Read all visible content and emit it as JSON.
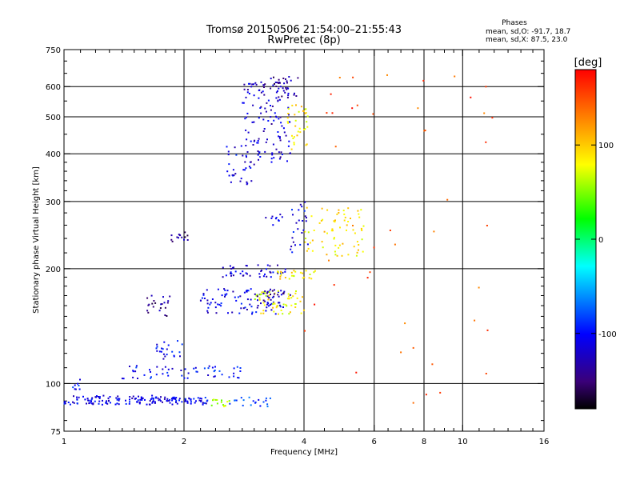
{
  "chart_data": {
    "type": "scatter",
    "title": "Tromsø 20150506 21:54:00–21:55:43",
    "subtitle": "RwPretec (8p)",
    "xlabel": "Frequency [MHz]",
    "ylabel": "Stationary phase Virtual Height [km]",
    "x_scale": "log",
    "y_scale": "log",
    "xlim": [
      1,
      16
    ],
    "ylim": [
      75,
      750
    ],
    "x_ticks": [
      1,
      2,
      4,
      6,
      8,
      10,
      16
    ],
    "x_tick_labels": [
      "1",
      "2",
      "4",
      "6",
      "8",
      "10",
      "16"
    ],
    "x_minor_ticks": [
      1.1,
      1.2,
      1.3,
      1.4,
      1.5,
      1.6,
      1.7,
      1.8,
      1.9,
      2.2,
      2.4,
      2.6,
      2.8,
      3,
      3.2,
      3.4,
      3.6,
      3.8,
      4.5,
      5,
      5.5,
      6.5,
      7,
      7.5,
      8.5,
      9,
      9.5,
      11,
      12,
      13,
      14,
      15
    ],
    "y_ticks": [
      75,
      100,
      200,
      300,
      400,
      500,
      600,
      750
    ],
    "y_tick_labels": [
      "75",
      "100",
      "200",
      "300",
      "400",
      "500",
      "600",
      "750"
    ],
    "y_minor_ticks": [
      80,
      90,
      110,
      120,
      130,
      140,
      150,
      160,
      170,
      180,
      190,
      220,
      240,
      260,
      280,
      320,
      340,
      360,
      380,
      450,
      550,
      650,
      700
    ],
    "x_grid": [
      2,
      4,
      6,
      8,
      10
    ],
    "y_grid": [
      100,
      200,
      300,
      400,
      500,
      600
    ],
    "stats_title": "Phases",
    "stats_lines": [
      "mean, sd,O: -91.7, 18.7",
      "mean, sd,X:  87.5, 23.0"
    ],
    "colorbar": {
      "label": "[deg]",
      "range": [
        -180,
        180
      ],
      "ticks": [
        100,
        0,
        -100
      ],
      "tick_labels": [
        "100",
        "0",
        "-100"
      ]
    },
    "clusters": [
      {
        "f": [
          1.0,
          1.9
        ],
        "h": [
          88,
          93
        ],
        "phase": -110,
        "n": 130
      },
      {
        "f": [
          1.05,
          1.1
        ],
        "h": [
          96,
          104
        ],
        "phase": -100,
        "n": 8
      },
      {
        "f": [
          1.9,
          2.3
        ],
        "h": [
          88,
          92
        ],
        "phase": -105,
        "n": 40
      },
      {
        "f": [
          2.3,
          2.6
        ],
        "h": [
          87,
          91
        ],
        "phase": 60,
        "n": 14
      },
      {
        "f": [
          2.6,
          3.3
        ],
        "h": [
          87,
          92
        ],
        "phase": -90,
        "n": 20
      },
      {
        "f": [
          1.4,
          2.9
        ],
        "h": [
          103,
          112
        ],
        "phase": -100,
        "n": 55
      },
      {
        "f": [
          1.7,
          2.0
        ],
        "h": [
          115,
          130
        ],
        "phase": -105,
        "n": 22
      },
      {
        "f": [
          1.6,
          1.85
        ],
        "h": [
          150,
          170
        ],
        "phase": -140,
        "n": 22
      },
      {
        "f": [
          1.85,
          2.05
        ],
        "h": [
          235,
          250
        ],
        "phase": -140,
        "n": 14
      },
      {
        "f": [
          2.2,
          3.6
        ],
        "h": [
          152,
          178
        ],
        "phase": -110,
        "n": 90
      },
      {
        "f": [
          3.0,
          4.0
        ],
        "h": [
          152,
          175
        ],
        "phase": 80,
        "n": 55
      },
      {
        "f": [
          3.0,
          3.7
        ],
        "h": [
          165,
          175
        ],
        "phase": -145,
        "n": 20
      },
      {
        "f": [
          2.5,
          3.6
        ],
        "h": [
          190,
          205
        ],
        "phase": -115,
        "n": 45
      },
      {
        "f": [
          3.4,
          4.3
        ],
        "h": [
          188,
          198
        ],
        "phase": 90,
        "n": 25
      },
      {
        "f": [
          4.0,
          5.7
        ],
        "h": [
          215,
          290
        ],
        "phase": 90,
        "n": 70
      },
      {
        "f": [
          3.7,
          4.1
        ],
        "h": [
          215,
          300
        ],
        "phase": -110,
        "n": 25
      },
      {
        "f": [
          3.0,
          3.6
        ],
        "h": [
          260,
          280
        ],
        "phase": -110,
        "n": 10
      },
      {
        "f": [
          2.55,
          3.0
        ],
        "h": [
          330,
          420
        ],
        "phase": -110,
        "n": 30
      },
      {
        "f": [
          2.8,
          3.7
        ],
        "h": [
          380,
          620
        ],
        "phase": -120,
        "n": 130
      },
      {
        "f": [
          3.6,
          4.1
        ],
        "h": [
          400,
          540
        ],
        "phase": 90,
        "n": 35
      },
      {
        "f": [
          3.1,
          3.9
        ],
        "h": [
          560,
          640
        ],
        "phase": -140,
        "n": 25
      },
      {
        "f": [
          4.0,
          12.0
        ],
        "h": [
          85,
          680
        ],
        "phase": 150,
        "n": 45
      }
    ]
  }
}
